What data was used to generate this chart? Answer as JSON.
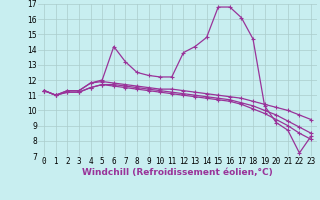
{
  "xlabel": "Windchill (Refroidissement éolien,°C)",
  "background_color": "#c8eef0",
  "grid_color": "#aacccc",
  "line_color": "#993399",
  "xlim": [
    -0.5,
    23.5
  ],
  "ylim": [
    7,
    17
  ],
  "yticks": [
    7,
    8,
    9,
    10,
    11,
    12,
    13,
    14,
    15,
    16,
    17
  ],
  "xticks": [
    0,
    1,
    2,
    3,
    4,
    5,
    6,
    7,
    8,
    9,
    10,
    11,
    12,
    13,
    14,
    15,
    16,
    17,
    18,
    19,
    20,
    21,
    22,
    23
  ],
  "series": [
    [
      11.3,
      11.0,
      11.3,
      11.3,
      11.8,
      12.0,
      14.2,
      13.2,
      12.5,
      12.3,
      12.2,
      12.2,
      13.8,
      14.2,
      14.8,
      16.8,
      16.8,
      16.1,
      14.7,
      10.3,
      9.2,
      8.7,
      7.2,
      8.3
    ],
    [
      11.3,
      11.0,
      11.3,
      11.3,
      11.8,
      11.9,
      11.8,
      11.7,
      11.6,
      11.5,
      11.4,
      11.4,
      11.3,
      11.2,
      11.1,
      11.0,
      10.9,
      10.8,
      10.6,
      10.4,
      10.2,
      10.0,
      9.7,
      9.4
    ],
    [
      11.3,
      11.0,
      11.2,
      11.2,
      11.5,
      11.7,
      11.7,
      11.6,
      11.5,
      11.4,
      11.3,
      11.2,
      11.1,
      11.0,
      10.9,
      10.8,
      10.7,
      10.5,
      10.3,
      10.0,
      9.7,
      9.3,
      8.9,
      8.5
    ],
    [
      11.3,
      11.0,
      11.2,
      11.2,
      11.5,
      11.7,
      11.6,
      11.5,
      11.4,
      11.3,
      11.2,
      11.1,
      11.0,
      10.9,
      10.8,
      10.7,
      10.6,
      10.4,
      10.1,
      9.8,
      9.4,
      9.0,
      8.5,
      8.1
    ]
  ],
  "xlabel_fontsize": 6.5,
  "tick_fontsize": 5.5,
  "marker_size": 3,
  "linewidth": 0.9
}
